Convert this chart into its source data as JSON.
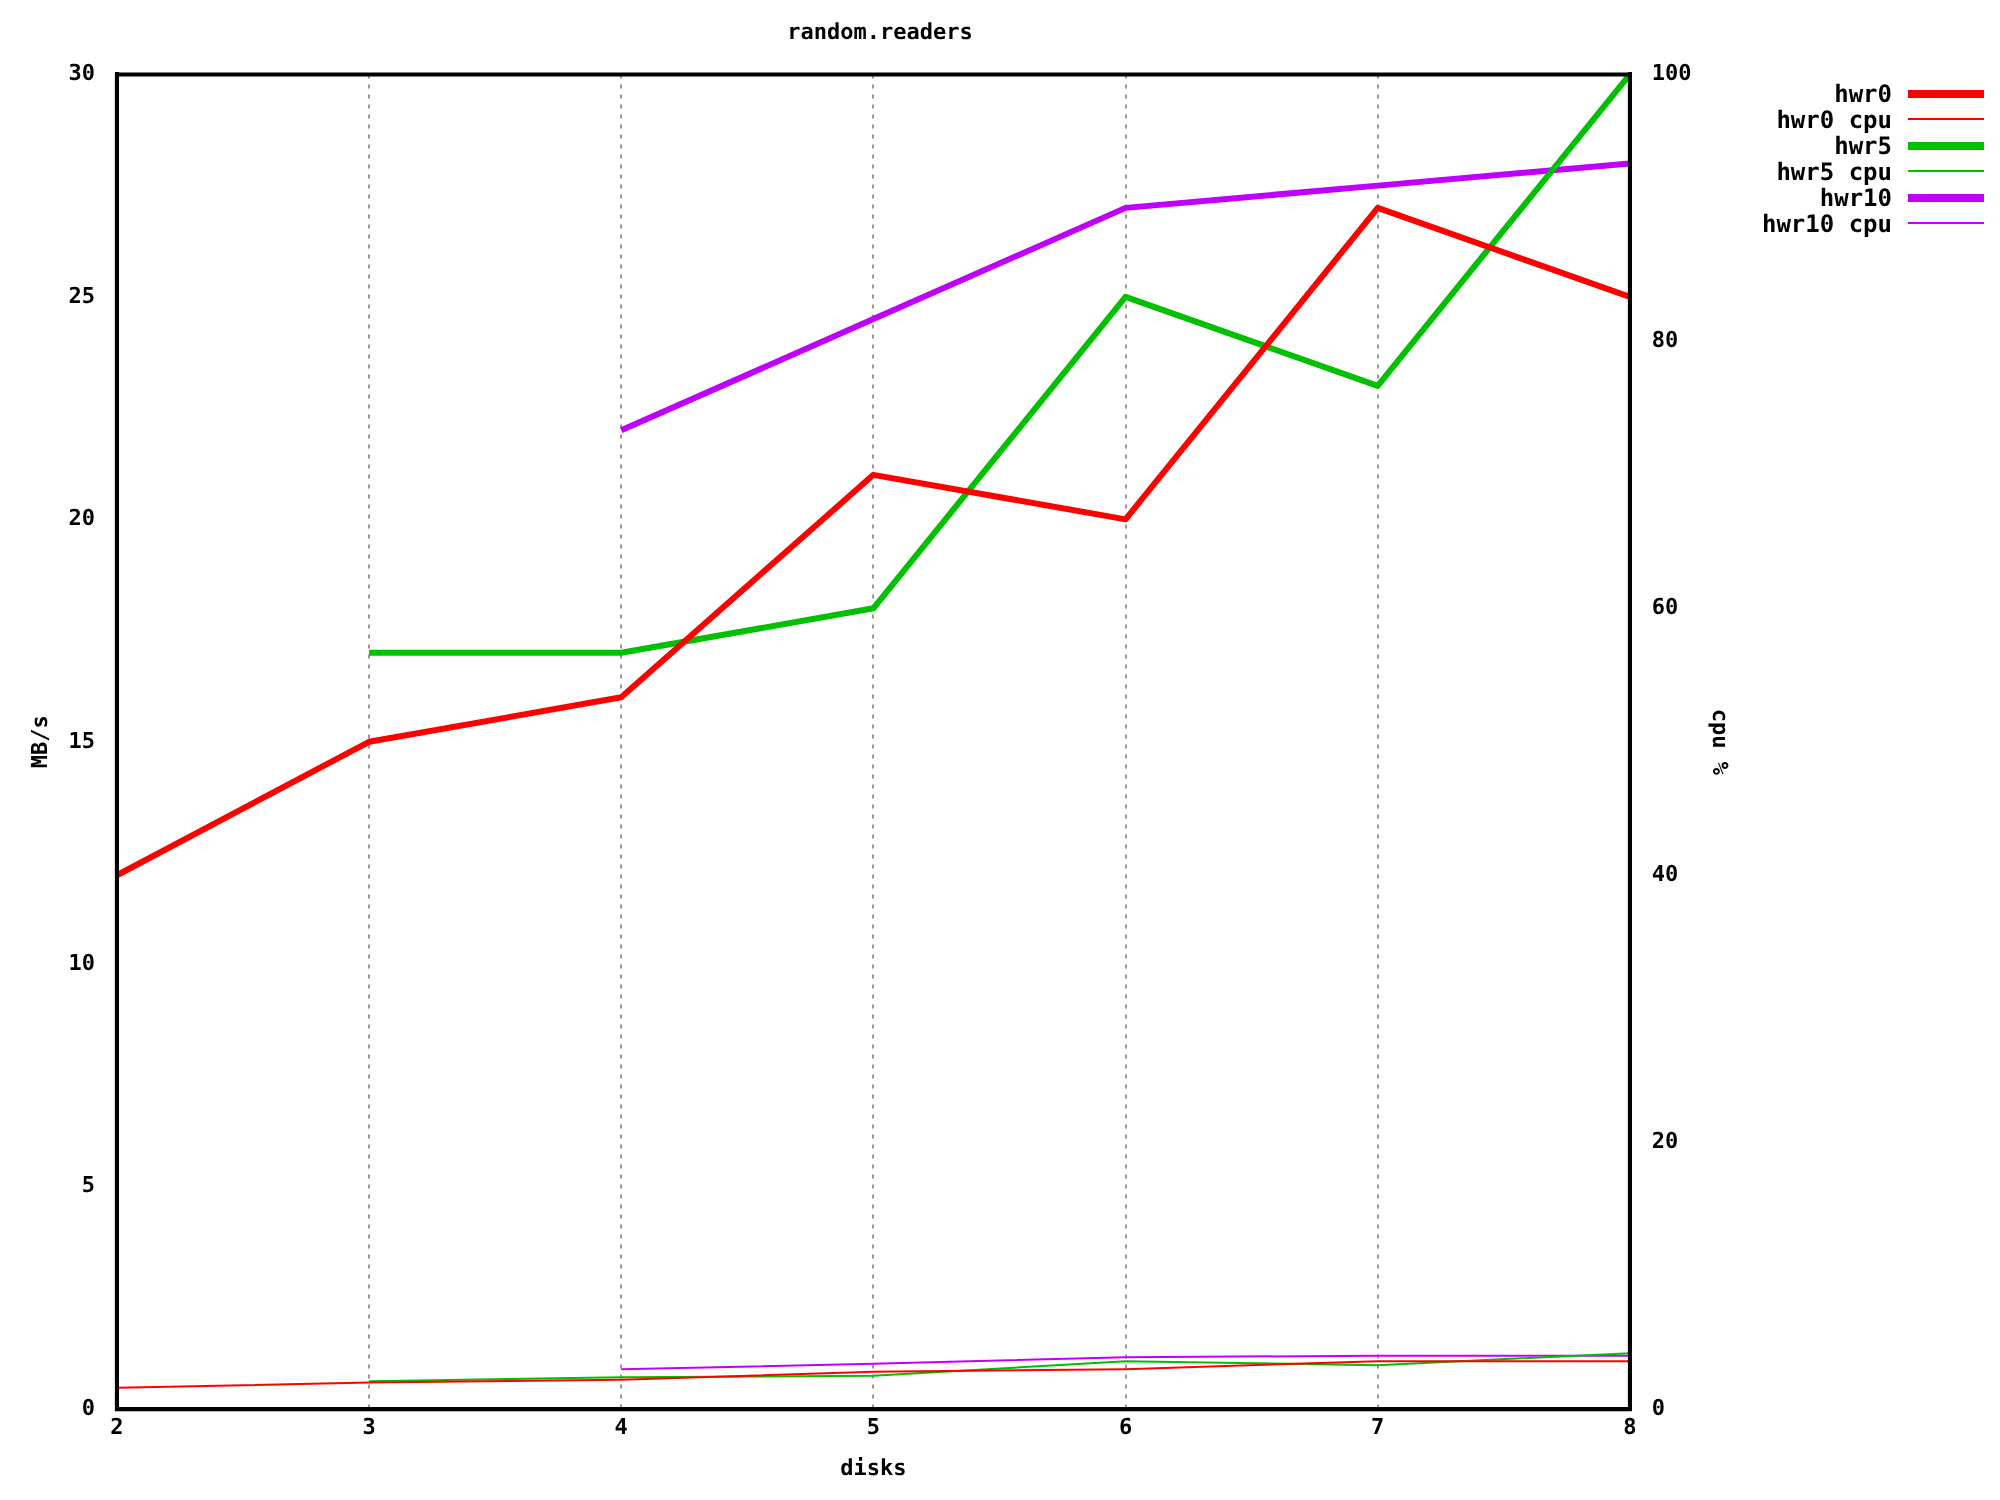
{
  "chart_data": {
    "type": "line",
    "title": "random.readers",
    "xlabel": "disks",
    "ylabel": "MB/s",
    "y2label": "cpu %",
    "x": [
      2,
      3,
      4,
      5,
      6,
      7,
      8
    ],
    "xlim": [
      2,
      8
    ],
    "xticks": [
      2,
      3,
      4,
      5,
      6,
      7,
      8
    ],
    "ylim": [
      0,
      30
    ],
    "yticks": [
      0,
      5,
      10,
      15,
      20,
      25,
      30
    ],
    "y2lim": [
      0,
      100
    ],
    "y2ticks": [
      0,
      20,
      40,
      60,
      80,
      100
    ],
    "grid": "x",
    "legend": "top right",
    "marker": "none",
    "line_style": "solid",
    "series": [
      {
        "name": "hwr0",
        "color": "#ff0000",
        "values": [
          12,
          15,
          16,
          21,
          20,
          27,
          25
        ]
      },
      {
        "name": "hwr0 cpu",
        "color": "#ff0000",
        "axis": "y2",
        "values": [
          1.6,
          2.0,
          2.2,
          2.8,
          3.0,
          3.6,
          3.6
        ]
      },
      {
        "name": "hwr5",
        "color": "#00c000",
        "values": [
          null,
          17,
          17,
          18,
          25,
          23,
          30
        ]
      },
      {
        "name": "hwr5 cpu",
        "color": "#00c000",
        "axis": "y2",
        "values": [
          null,
          2.1,
          2.4,
          2.5,
          3.6,
          3.3,
          4.2
        ]
      },
      {
        "name": "hwr10",
        "color": "#c000ff",
        "values": [
          null,
          null,
          22,
          24.5,
          27,
          27.5,
          28
        ]
      },
      {
        "name": "hwr10 cpu",
        "color": "#c000ff",
        "axis": "y2",
        "values": [
          null,
          null,
          3.0,
          3.4,
          3.9,
          4.0,
          4.0
        ]
      }
    ]
  }
}
